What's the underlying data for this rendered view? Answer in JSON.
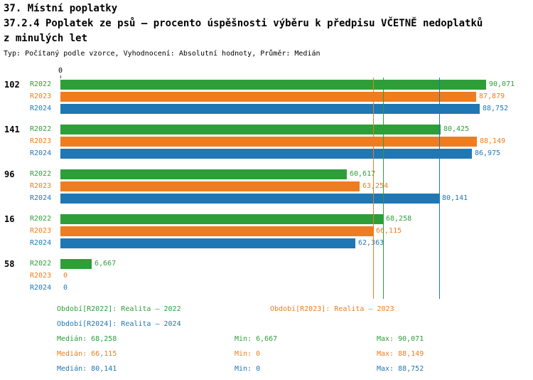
{
  "header": {
    "title": "37. Místní poplatky",
    "subtitle_line1": "37.2.4 Poplatek ze psů – procento úspěšnosti výběru k předpisu VČETNĚ nedoplatků",
    "subtitle_line2": "z minulých let",
    "meta": "Typ: Počítaný podle vzorce, Vyhodnocení: Absolutní hodnoty, Průměr: Medián"
  },
  "colors": {
    "r2022_green": "#2E9E38",
    "r2023_orange": "#ED7D20",
    "r2024_blue": "#1F77B4"
  },
  "chart_data": {
    "type": "bar",
    "orientation": "horizontal",
    "unit": "percent",
    "title": "37.2.4 Poplatek ze psů – procento úspěšnosti výběru k předpisu VČETNĚ nedoplatků z minulých let",
    "axis": {
      "min": 0,
      "max": 92,
      "zero_label": "0"
    },
    "legend_position": "bottom",
    "grid": false,
    "series": [
      {
        "key": "r2022",
        "label": "R2022",
        "color": "#2E9E38"
      },
      {
        "key": "r2023",
        "label": "R2023",
        "color": "#ED7D20"
      },
      {
        "key": "r2024",
        "label": "R2024",
        "color": "#1F77B4"
      }
    ],
    "groups": [
      {
        "label": "102",
        "values": [
          90.071,
          87.879,
          88.752
        ],
        "displays": [
          "90,071",
          "87,879",
          "88,752"
        ]
      },
      {
        "label": "141",
        "values": [
          80.425,
          88.149,
          86.975
        ],
        "displays": [
          "80,425",
          "88,149",
          "86,975"
        ]
      },
      {
        "label": "96",
        "values": [
          60.617,
          63.254,
          80.141
        ],
        "displays": [
          "60,617",
          "63,254",
          "80,141"
        ]
      },
      {
        "label": "16",
        "values": [
          68.258,
          66.115,
          62.363
        ],
        "displays": [
          "68,258",
          "66,115",
          "62,363"
        ]
      },
      {
        "label": "58",
        "values": [
          6.667,
          0,
          0
        ],
        "displays": [
          "6,667",
          "0",
          "0"
        ]
      }
    ],
    "median_lines": [
      {
        "series": "R2022",
        "value": 68.258,
        "color": "#2E9E38"
      },
      {
        "series": "R2023",
        "value": 66.115,
        "color": "#ED7D20"
      },
      {
        "series": "R2024",
        "value": 80.141,
        "color": "#1F77B4"
      }
    ]
  },
  "legend": {
    "items": [
      {
        "text": "Období[R2022]: Realita – 2022",
        "color": "#2E9E38"
      },
      {
        "text": "Období[R2023]: Realita – 2023",
        "color": "#ED7D20"
      },
      {
        "text": "Období[R2024]: Realita – 2024",
        "color": "#1F77B4"
      }
    ]
  },
  "stats": {
    "rows": [
      {
        "median": "Medián: 68,258",
        "min": "Min: 6,667",
        "max": "Max: 90,071",
        "color": "#2E9E38"
      },
      {
        "median": "Medián: 66,115",
        "min": "Min: 0",
        "max": "Max: 88,149",
        "color": "#ED7D20"
      },
      {
        "median": "Medián: 80,141",
        "min": "Min: 0",
        "max": "Max: 88,752",
        "color": "#1F77B4"
      }
    ]
  }
}
